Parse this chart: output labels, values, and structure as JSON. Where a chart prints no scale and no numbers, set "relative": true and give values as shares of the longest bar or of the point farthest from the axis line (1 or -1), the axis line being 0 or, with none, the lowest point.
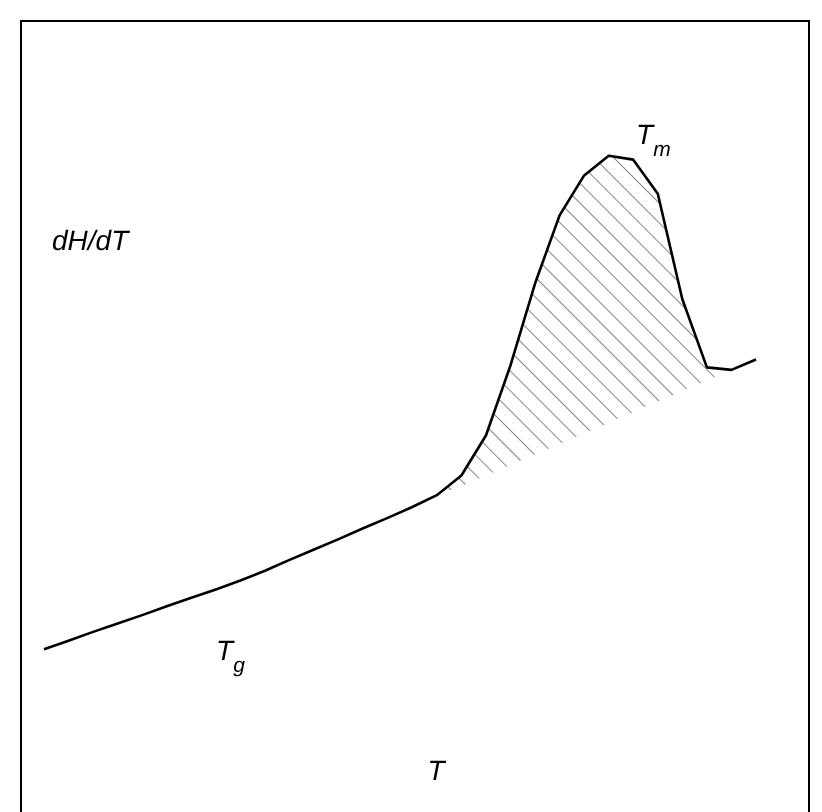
{
  "chart_data": {
    "type": "line",
    "relative": true,
    "xlabel": "T",
    "ylabel": "dH/dT",
    "annotations": [
      "T$_{m}$",
      "T$_{g}$"
    ],
    "categories": [
      null,
      null,
      null,
      null,
      null,
      null,
      null,
      null,
      null,
      null,
      null,
      null,
      null,
      null,
      null,
      null,
      null,
      null,
      null,
      null,
      null,
      null,
      null,
      null,
      null,
      null,
      null,
      null,
      null,
      null
    ],
    "series": [
      {
        "color": "#000000",
        "values": [
          0,
          0.017,
          0.035,
          0.052,
          0.069,
          0.087,
          0.104,
          0.121,
          0.139,
          0.159,
          0.181,
          0.202,
          0.223,
          0.245,
          0.266,
          0.288,
          0.312,
          0.352,
          0.433,
          0.575,
          0.741,
          0.879,
          0.96,
          1,
          0.992,
          0.923,
          0.709,
          0.571,
          0.566,
          0.587
        ],
        "lower": [
          null,
          null,
          null,
          null,
          null,
          null,
          null,
          null,
          null,
          null,
          null,
          null,
          null,
          null,
          null,
          null,
          0.312,
          0.33,
          0.352,
          0.373,
          0.395,
          0.416,
          0.437,
          0.459,
          0.48,
          0.502,
          0.523,
          0.544,
          0.566,
          null
        ],
        "upper": [
          null,
          null,
          null,
          null,
          null,
          null,
          null,
          null,
          null,
          null,
          null,
          null,
          null,
          null,
          null,
          null,
          0.312,
          0.352,
          0.433,
          0.575,
          0.741,
          0.879,
          0.96,
          1,
          0.992,
          0.923,
          0.709,
          0.571,
          0.566,
          null
        ]
      }
    ],
    "grid": false,
    "legend": false,
    "marker": "none",
    "line_style": "solid"
  }
}
